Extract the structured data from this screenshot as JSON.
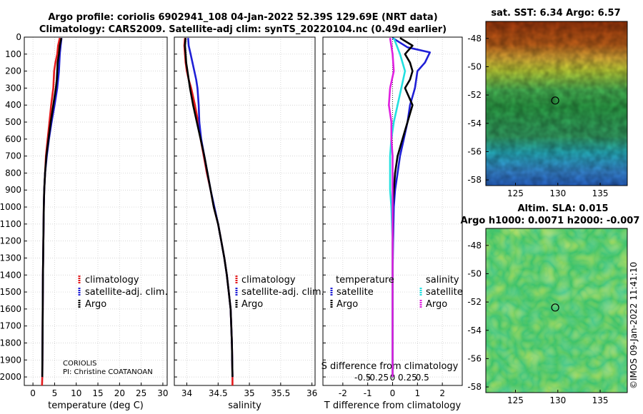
{
  "title_line1": "Argo profile: coriolis 6902941_108 04-Jan-2022 52.39S 129.69E (NRT data)",
  "title_line2": "Climatology: CARS2009. Satellite-adj clim: synTS_20220104.nc (0.49d earlier)",
  "credit": "CORIOLIS",
  "pi": "PI: Christine COATANOAN",
  "watermark": "©IMOS 09-Jan-2022 11:41:10",
  "legend": {
    "climatology": "climatology",
    "satellite_adj": "satellite-adj. clim.",
    "argo": "Argo",
    "temperature": "temperature",
    "salinity": "salinity",
    "satellite": "satellite"
  },
  "colors": {
    "red": "#e31a1c",
    "blue": "#1f1fd6",
    "black": "#000000",
    "cyan": "#22e0e0",
    "magenta": "#e020e0"
  },
  "chart_data": [
    {
      "type": "line",
      "name": "temperature",
      "xlabel": "temperature (deg C)",
      "ylabel": "",
      "xlim": [
        -2,
        31
      ],
      "ylim": [
        2050,
        0
      ],
      "xticks": [
        0,
        5,
        10,
        15,
        20,
        25,
        30
      ],
      "yticks": [
        0,
        100,
        200,
        300,
        400,
        500,
        600,
        700,
        800,
        900,
        1000,
        1100,
        1200,
        1300,
        1400,
        1500,
        1600,
        1700,
        1800,
        1900,
        2000
      ],
      "grid": true,
      "series": [
        {
          "name": "climatology",
          "color": "red",
          "points": [
            [
              6.2,
              5
            ],
            [
              5.8,
              50
            ],
            [
              5.6,
              100
            ],
            [
              5.2,
              150
            ],
            [
              4.9,
              200
            ],
            [
              4.7,
              300
            ],
            [
              4.2,
              400
            ],
            [
              3.8,
              500
            ],
            [
              3.4,
              600
            ],
            [
              3.0,
              700
            ],
            [
              2.8,
              800
            ],
            [
              2.6,
              900
            ],
            [
              2.5,
              1000
            ],
            [
              2.4,
              1200
            ],
            [
              2.3,
              1400
            ],
            [
              2.25,
              1600
            ],
            [
              2.2,
              1800
            ],
            [
              2.15,
              2000
            ],
            [
              2.1,
              2050
            ]
          ]
        },
        {
          "name": "satellite-adj. clim.",
          "color": "blue",
          "points": [
            [
              6.6,
              5
            ],
            [
              6.4,
              50
            ],
            [
              6.2,
              100
            ],
            [
              6.1,
              150
            ],
            [
              6.0,
              200
            ],
            [
              5.8,
              250
            ],
            [
              5.6,
              300
            ],
            [
              5.0,
              400
            ],
            [
              4.3,
              500
            ],
            [
              3.7,
              600
            ],
            [
              3.2,
              700
            ],
            [
              2.8,
              800
            ],
            [
              2.6,
              900
            ],
            [
              2.5,
              1000
            ],
            [
              2.4,
              1200
            ],
            [
              2.3,
              1400
            ],
            [
              2.25,
              1600
            ],
            [
              2.2,
              1800
            ],
            [
              2.15,
              2000
            ]
          ]
        },
        {
          "name": "Argo",
          "color": "black",
          "points": [
            [
              6.57,
              5
            ],
            [
              6.2,
              50
            ],
            [
              6.0,
              100
            ],
            [
              5.7,
              150
            ],
            [
              5.6,
              200
            ],
            [
              5.5,
              250
            ],
            [
              5.3,
              300
            ],
            [
              4.7,
              400
            ],
            [
              4.1,
              500
            ],
            [
              3.6,
              600
            ],
            [
              3.1,
              700
            ],
            [
              2.8,
              800
            ],
            [
              2.6,
              900
            ],
            [
              2.5,
              1000
            ],
            [
              2.4,
              1200
            ],
            [
              2.3,
              1400
            ],
            [
              2.25,
              1600
            ],
            [
              2.2,
              1800
            ],
            [
              2.15,
              2000
            ]
          ]
        }
      ]
    },
    {
      "type": "line",
      "name": "salinity",
      "xlabel": "salinity",
      "ylabel": "",
      "xlim": [
        33.8,
        36.05
      ],
      "ylim": [
        2050,
        0
      ],
      "xticks": [
        34,
        34.5,
        35,
        35.5,
        36
      ],
      "xticklabels": [
        "34",
        "34.5",
        "35",
        "35.5",
        "36"
      ],
      "grid": true,
      "series": [
        {
          "name": "climatology",
          "color": "red",
          "points": [
            [
              33.97,
              5
            ],
            [
              33.96,
              50
            ],
            [
              33.97,
              100
            ],
            [
              33.98,
              150
            ],
            [
              34.0,
              200
            ],
            [
              34.03,
              250
            ],
            [
              34.07,
              300
            ],
            [
              34.13,
              400
            ],
            [
              34.18,
              500
            ],
            [
              34.22,
              600
            ],
            [
              34.27,
              700
            ],
            [
              34.32,
              800
            ],
            [
              34.38,
              900
            ],
            [
              34.43,
              1000
            ],
            [
              34.5,
              1100
            ],
            [
              34.55,
              1200
            ],
            [
              34.6,
              1300
            ],
            [
              34.64,
              1400
            ],
            [
              34.67,
              1500
            ],
            [
              34.7,
              1600
            ],
            [
              34.72,
              1800
            ],
            [
              34.73,
              2000
            ],
            [
              34.73,
              2050
            ]
          ]
        },
        {
          "name": "satellite-adj. clim.",
          "color": "blue",
          "points": [
            [
              34.02,
              5
            ],
            [
              34.03,
              50
            ],
            [
              34.06,
              100
            ],
            [
              34.09,
              150
            ],
            [
              34.12,
              200
            ],
            [
              34.15,
              250
            ],
            [
              34.17,
              300
            ],
            [
              34.19,
              400
            ],
            [
              34.2,
              500
            ],
            [
              34.23,
              600
            ],
            [
              34.28,
              700
            ],
            [
              34.33,
              800
            ],
            [
              34.38,
              900
            ],
            [
              34.44,
              1000
            ],
            [
              34.5,
              1100
            ],
            [
              34.55,
              1200
            ],
            [
              34.6,
              1300
            ],
            [
              34.64,
              1400
            ],
            [
              34.67,
              1500
            ],
            [
              34.7,
              1600
            ],
            [
              34.72,
              1800
            ],
            [
              34.73,
              2000
            ]
          ]
        },
        {
          "name": "Argo",
          "color": "black",
          "points": [
            [
              33.98,
              5
            ],
            [
              33.97,
              50
            ],
            [
              33.98,
              100
            ],
            [
              33.99,
              150
            ],
            [
              34.01,
              200
            ],
            [
              34.05,
              300
            ],
            [
              34.1,
              400
            ],
            [
              34.16,
              500
            ],
            [
              34.22,
              600
            ],
            [
              34.28,
              700
            ],
            [
              34.33,
              800
            ],
            [
              34.38,
              900
            ],
            [
              34.43,
              1000
            ],
            [
              34.5,
              1100
            ],
            [
              34.55,
              1200
            ],
            [
              34.6,
              1300
            ],
            [
              34.64,
              1400
            ],
            [
              34.67,
              1500
            ],
            [
              34.7,
              1600
            ],
            [
              34.72,
              1800
            ],
            [
              34.73,
              2000
            ]
          ]
        }
      ]
    },
    {
      "type": "line",
      "name": "difference",
      "xlabel": "T difference from climatology",
      "x2label": "S difference from climatology",
      "xlim": [
        -2.8,
        2.8
      ],
      "ylim": [
        2050,
        0
      ],
      "xticks": [
        -2,
        -1,
        0,
        1,
        2
      ],
      "xticklabels": [
        "-2",
        "-1",
        "0",
        "1",
        "2"
      ],
      "x2ticks": [
        -1.2,
        -0.6,
        0.6,
        1.2
      ],
      "x2ticklabels": [
        "-0.5",
        "-0.25",
        "0.25",
        "0.5"
      ],
      "x2zero_label": "0",
      "grid": true,
      "series": [
        {
          "name": "temperature satellite",
          "color": "blue",
          "points": [
            [
              0,
              5
            ],
            [
              0.6,
              60
            ],
            [
              1.5,
              90
            ],
            [
              1.3,
              150
            ],
            [
              1.0,
              200
            ],
            [
              0.9,
              300
            ],
            [
              0.7,
              400
            ],
            [
              0.6,
              500
            ],
            [
              0.45,
              600
            ],
            [
              0.3,
              700
            ],
            [
              0.2,
              800
            ],
            [
              0.1,
              900
            ],
            [
              0.05,
              1000
            ],
            [
              0.02,
              1200
            ],
            [
              0,
              1400
            ],
            [
              0,
              2000
            ]
          ]
        },
        {
          "name": "temperature Argo",
          "color": "black",
          "points": [
            [
              0.3,
              5
            ],
            [
              0.8,
              50
            ],
            [
              0.5,
              100
            ],
            [
              0.7,
              150
            ],
            [
              0.8,
              200
            ],
            [
              0.7,
              250
            ],
            [
              0.5,
              300
            ],
            [
              0.8,
              400
            ],
            [
              0.6,
              500
            ],
            [
              0.4,
              600
            ],
            [
              0.2,
              700
            ],
            [
              0.1,
              800
            ],
            [
              0.05,
              900
            ],
            [
              0,
              1000
            ],
            [
              0,
              1200
            ],
            [
              0,
              1400
            ],
            [
              0,
              2000
            ]
          ]
        },
        {
          "name": "salinity satellite",
          "color": "cyan",
          "points": [
            [
              0.05,
              5
            ],
            [
              0.3,
              100
            ],
            [
              0.5,
              200
            ],
            [
              0.35,
              300
            ],
            [
              0.2,
              400
            ],
            [
              0.05,
              500
            ],
            [
              -0.05,
              600
            ],
            [
              -0.1,
              700
            ],
            [
              -0.1,
              800
            ],
            [
              -0.1,
              900
            ],
            [
              -0.05,
              1000
            ],
            [
              0,
              1200
            ],
            [
              0,
              1400
            ],
            [
              0,
              2000
            ]
          ]
        },
        {
          "name": "salinity Argo",
          "color": "magenta",
          "points": [
            [
              -0.1,
              5
            ],
            [
              0.0,
              100
            ],
            [
              0.05,
              200
            ],
            [
              -0.1,
              300
            ],
            [
              -0.15,
              400
            ],
            [
              -0.05,
              500
            ],
            [
              -0.05,
              600
            ],
            [
              0.0,
              700
            ],
            [
              0.0,
              800
            ],
            [
              0.0,
              1000
            ],
            [
              0.0,
              1200
            ],
            [
              0.0,
              1400
            ],
            [
              0.0,
              2000
            ]
          ]
        }
      ]
    },
    {
      "type": "heatmap",
      "name": "sst-map",
      "title": "sat. SST: 6.34 Argo: 6.57",
      "xticks": [
        125,
        130,
        135
      ],
      "yticks": [
        -48,
        -50,
        -52,
        -54,
        -56,
        -58
      ],
      "xlim": [
        121.5,
        138.2
      ],
      "ylim": [
        -58.4,
        -46.8
      ],
      "marker": [
        129.69,
        -52.39
      ]
    },
    {
      "type": "heatmap",
      "name": "sla-map",
      "title_line1": "Altim. SLA: 0.015",
      "title_line2": "Argo h1000: 0.0071 h2000: -0.007",
      "xticks": [
        125,
        130,
        135
      ],
      "yticks": [
        -48,
        -50,
        -52,
        -54,
        -56,
        -58
      ],
      "xlim": [
        121.5,
        138.2
      ],
      "ylim": [
        -58.4,
        -46.8
      ],
      "marker": [
        129.69,
        -52.39
      ]
    }
  ]
}
